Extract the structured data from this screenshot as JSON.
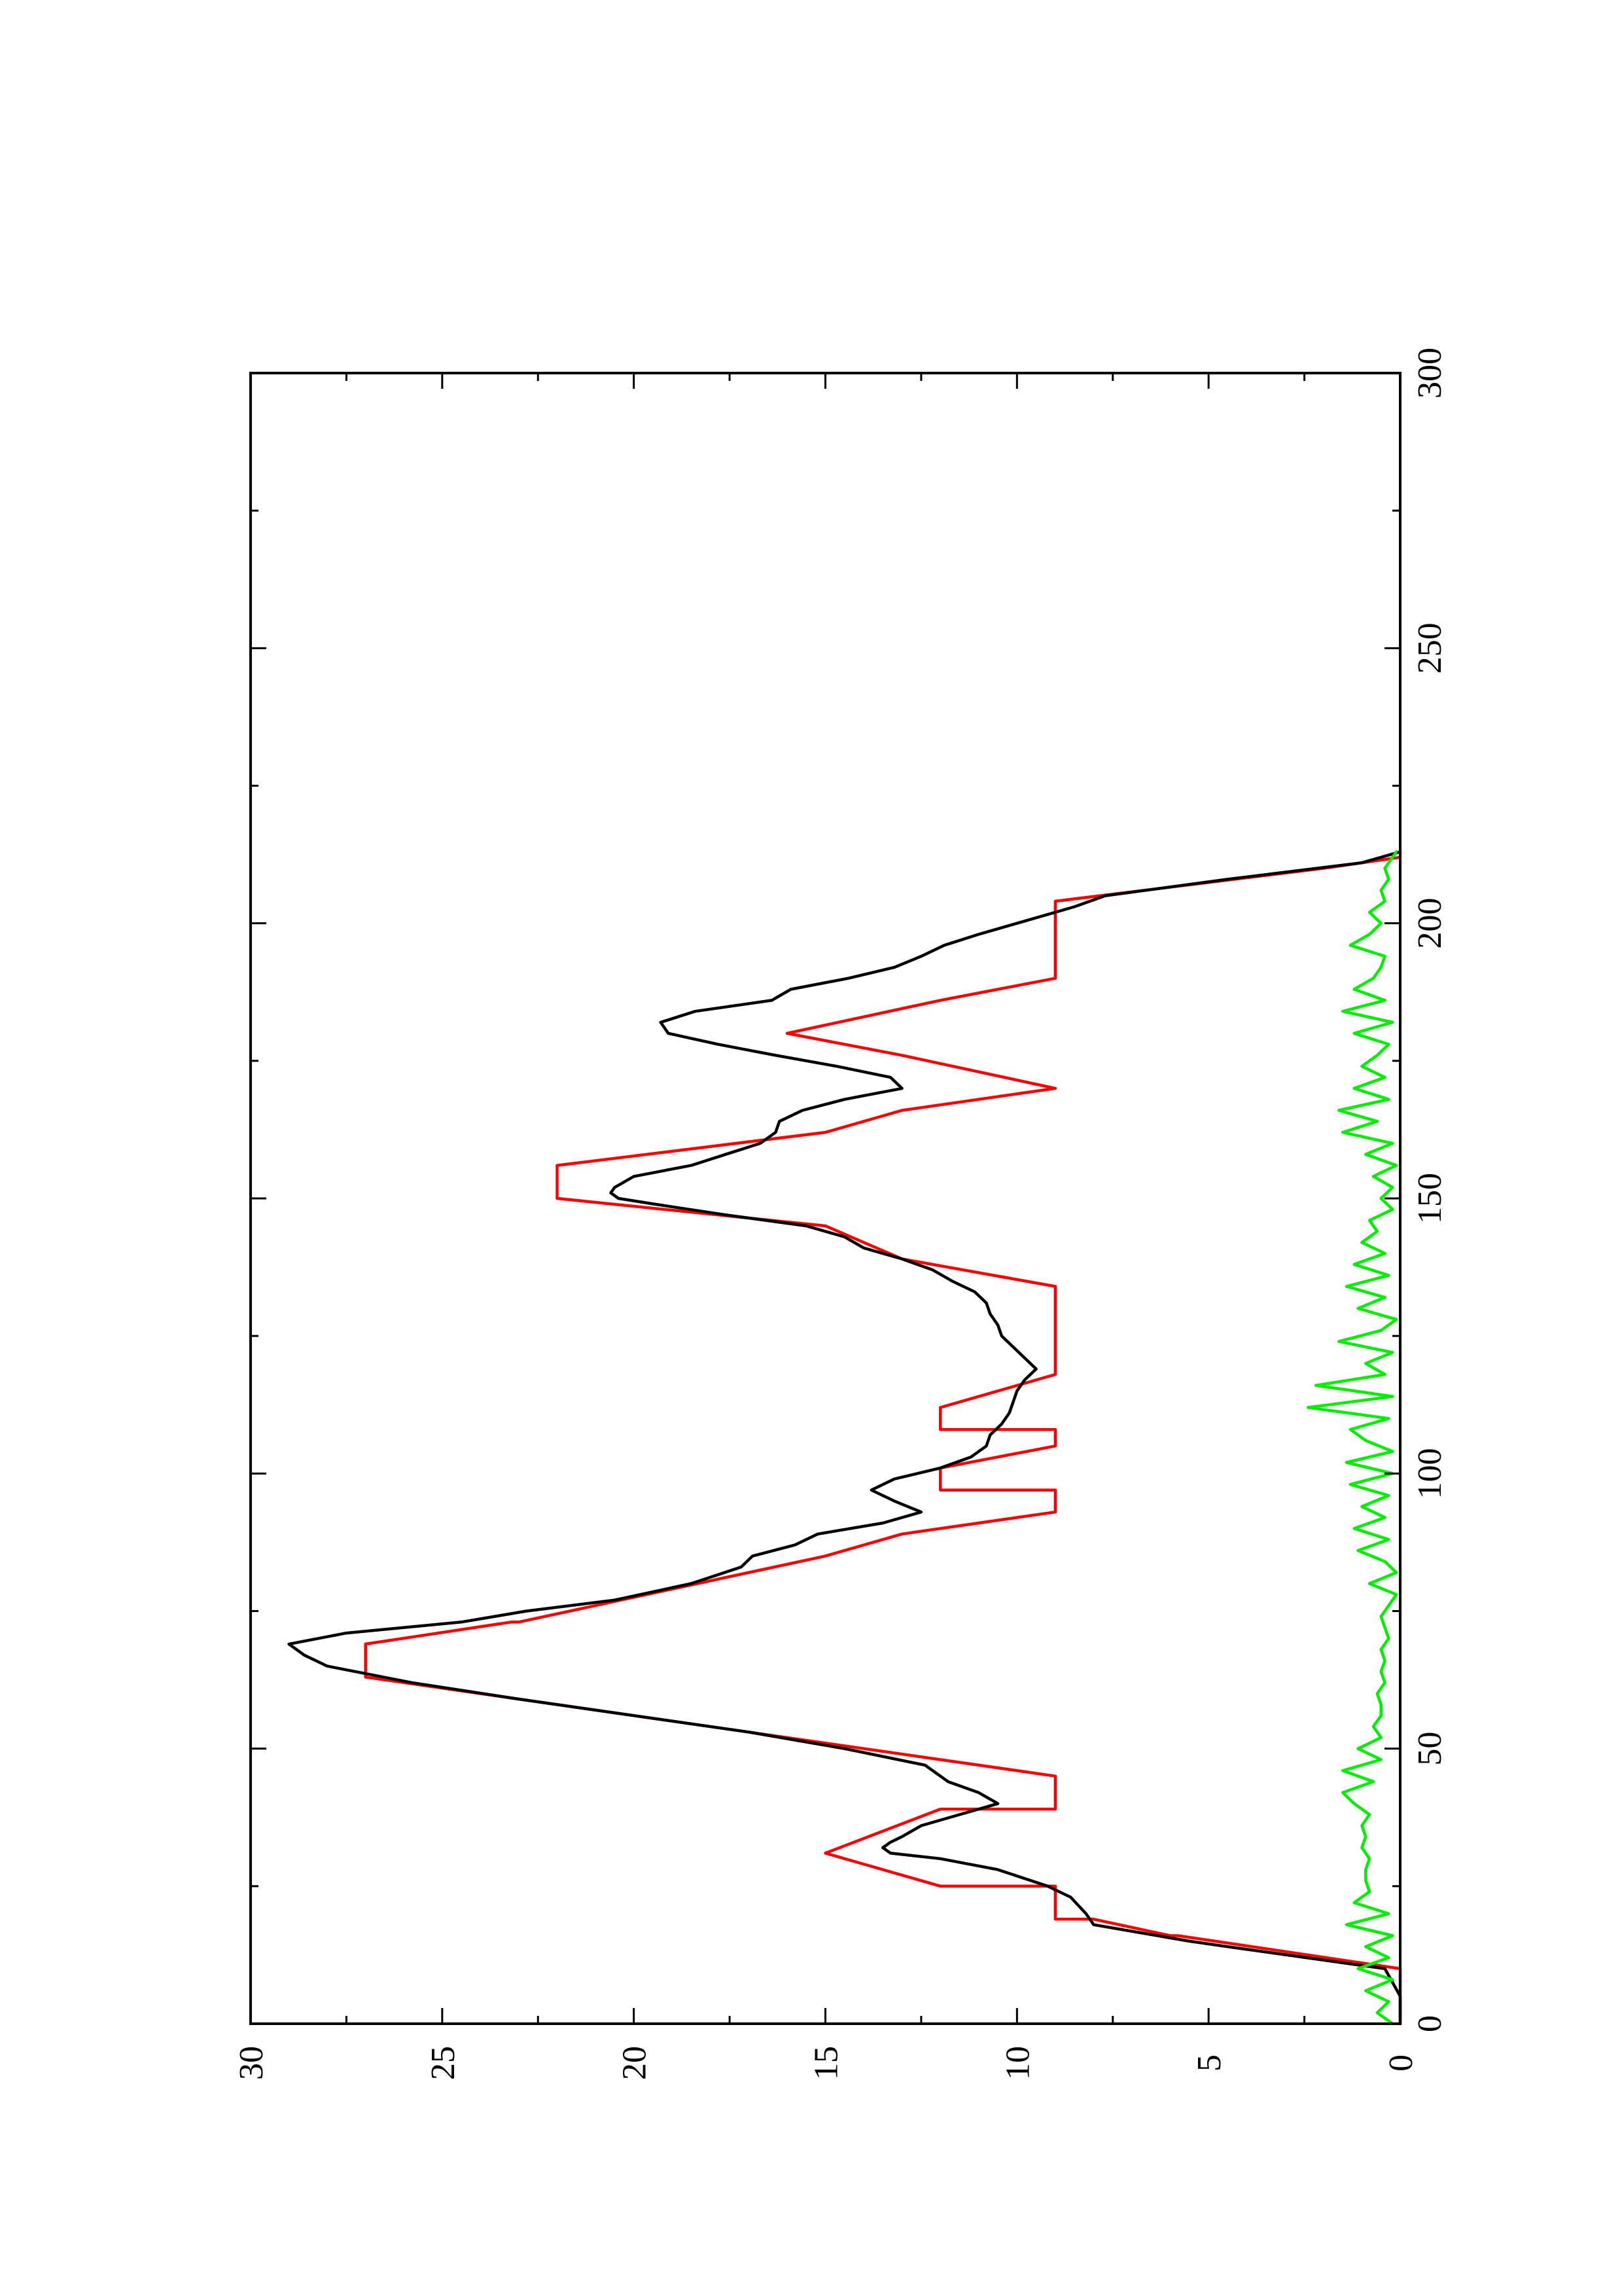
{
  "chart_data": {
    "type": "line",
    "title": "",
    "xlabel": "",
    "ylabel": "",
    "orientation": "rotated-90-ccw",
    "xlim": [
      0,
      300
    ],
    "ylim": [
      0,
      30
    ],
    "x_ticks": [
      0,
      50,
      100,
      150,
      200,
      250,
      300
    ],
    "y_ticks": [
      0,
      5,
      10,
      15,
      20,
      25,
      30
    ],
    "x_tick_labels": [
      "0",
      "50",
      "100",
      "150",
      "200",
      "250",
      "300"
    ],
    "y_tick_labels": [
      "0",
      "5",
      "10",
      "15",
      "20",
      "25",
      "30"
    ],
    "grid": false,
    "legend": "none",
    "series": [
      {
        "color": "#ff0000",
        "x": [
          0,
          10,
          16,
          16,
          19,
          19,
          25,
          25,
          31,
          31,
          39,
          39,
          45,
          45,
          63,
          63,
          69,
          69,
          73,
          73,
          85,
          85,
          89,
          89,
          93,
          93,
          97,
          97,
          101,
          101,
          105,
          105,
          108,
          108,
          112,
          112,
          118,
          118,
          125,
          125,
          131,
          131,
          134,
          134,
          139,
          139,
          145,
          145,
          150,
          150,
          156,
          156,
          162,
          162,
          166,
          166,
          170,
          170,
          176,
          176,
          180,
          180,
          186,
          186,
          190,
          190,
          204,
          204,
          210,
          212
        ],
        "y": [
          0,
          0,
          5.8,
          6,
          8,
          9,
          9,
          12,
          15,
          15,
          12,
          9,
          9,
          9,
          27,
          27,
          27,
          27,
          23.2,
          23,
          15,
          15,
          13,
          13,
          9,
          9,
          9,
          12,
          12,
          12,
          9,
          9,
          9,
          12,
          12,
          12,
          9,
          9,
          9,
          9,
          9,
          9,
          9,
          9,
          13,
          13,
          15,
          15,
          22,
          22,
          22,
          22,
          15,
          15,
          13,
          13,
          9,
          9,
          13,
          13,
          16,
          16,
          12,
          12,
          9,
          9,
          9,
          9,
          2,
          0
        ]
      },
      {
        "color": "#000000",
        "x": [
          0,
          5,
          10,
          14,
          15,
          18,
          20,
          23,
          25,
          28,
          30,
          31,
          32,
          33,
          34,
          36,
          38,
          40,
          42,
          44,
          47,
          50,
          53,
          56,
          59,
          62,
          65,
          67,
          69,
          71,
          73,
          75,
          77,
          80,
          83,
          85,
          87,
          89,
          91,
          93,
          95,
          97,
          99,
          101,
          103,
          105,
          107,
          109,
          111,
          113,
          115,
          117,
          119,
          121,
          123,
          125,
          127,
          129,
          131,
          133,
          135,
          137,
          139,
          141,
          143,
          145,
          147,
          149,
          150,
          151,
          152,
          154,
          156,
          158,
          160,
          162,
          164,
          166,
          168,
          170,
          172,
          174,
          176,
          178,
          180,
          182,
          184,
          186,
          188,
          190,
          192,
          194,
          196,
          198,
          200,
          203,
          205,
          208,
          211,
          213
        ],
        "y": [
          0,
          0,
          0.4,
          4.5,
          5.5,
          8,
          8.2,
          8.6,
          9.2,
          10.5,
          12,
          13.3,
          13.5,
          13.3,
          13,
          12.5,
          11.5,
          10.5,
          11,
          11.8,
          12.4,
          14.5,
          17,
          20,
          23,
          25.8,
          28,
          28.6,
          29,
          27.5,
          24.5,
          22.8,
          20.5,
          18.5,
          17.2,
          16.9,
          15.8,
          15.2,
          13.5,
          12.5,
          13.2,
          13.8,
          13.2,
          12,
          11.2,
          10.8,
          10.7,
          10.4,
          10.2,
          10.1,
          10,
          9.8,
          9.5,
          9.8,
          10.1,
          10.4,
          10.5,
          10.7,
          10.8,
          11.1,
          11.7,
          12.2,
          13,
          14,
          14.5,
          15.5,
          17.6,
          19.5,
          20.4,
          20.6,
          20.5,
          20,
          18.5,
          17.6,
          16.7,
          16.3,
          16.2,
          15.6,
          14.5,
          13,
          13.3,
          14.7,
          16.3,
          17.8,
          19.1,
          19.3,
          18.4,
          16.4,
          15.9,
          14.4,
          13.2,
          12.5,
          11.9,
          11,
          10,
          8.5,
          7.7,
          4.5,
          1,
          0
        ]
      },
      {
        "color": "#00ee00",
        "x": [
          0,
          2,
          4,
          6,
          8,
          10,
          12,
          14,
          16,
          18,
          20,
          22,
          24,
          26,
          28,
          30,
          32,
          34,
          36,
          38,
          40,
          42,
          44,
          46,
          48,
          50,
          52,
          54,
          56,
          58,
          60,
          62,
          64,
          66,
          68,
          70,
          72,
          74,
          76,
          78,
          80,
          82,
          84,
          86,
          88,
          90,
          92,
          94,
          96,
          98,
          100,
          102,
          104,
          106,
          108,
          110,
          112,
          114,
          116,
          118,
          120,
          122,
          124,
          126,
          128,
          130,
          132,
          134,
          136,
          138,
          140,
          142,
          144,
          146,
          148,
          150,
          152,
          154,
          156,
          158,
          160,
          162,
          164,
          166,
          168,
          170,
          172,
          174,
          176,
          178,
          180,
          182,
          184,
          186,
          188,
          190,
          192,
          194,
          196,
          198,
          200,
          202,
          204,
          206,
          208,
          210,
          212,
          213
        ],
        "y": [
          0.2,
          0.6,
          0.3,
          0.9,
          0.2,
          1.1,
          0.3,
          0.9,
          0.2,
          1.4,
          0.3,
          1.2,
          0.8,
          0.9,
          0.9,
          0.8,
          1.0,
          0.9,
          1.0,
          0.8,
          1.2,
          1.5,
          0.7,
          1.5,
          0.5,
          1.1,
          0.5,
          0.7,
          0.5,
          0.5,
          0.6,
          0.4,
          0.5,
          0.4,
          0.5,
          0.3,
          0.4,
          0.5,
          0.3,
          0.1,
          0.8,
          0.1,
          0.4,
          1.1,
          0.3,
          1.2,
          0.4,
          1.0,
          0.3,
          1.3,
          0.2,
          1.4,
          0.2,
          0.9,
          1.3,
          0.3,
          2.4,
          0.2,
          2.2,
          0.4,
          0.9,
          0.2,
          1.6,
          0.5,
          0.1,
          1.1,
          0.4,
          1.4,
          0.3,
          1.2,
          0.4,
          1.0,
          0.6,
          0.8,
          0.2,
          0.5,
          0.2,
          0.7,
          0.1,
          0.9,
          0.2,
          1.5,
          0.6,
          1.6,
          0.3,
          1.2,
          0.4,
          1.0,
          0.6,
          0.3,
          1.2,
          0.2,
          1.5,
          0.4,
          1.2,
          0.7,
          0.5,
          0.4,
          1.3,
          0.8,
          0.5,
          0.8,
          0.4,
          0.5,
          0.3,
          0.4,
          0.2,
          0.1
        ]
      }
    ]
  }
}
